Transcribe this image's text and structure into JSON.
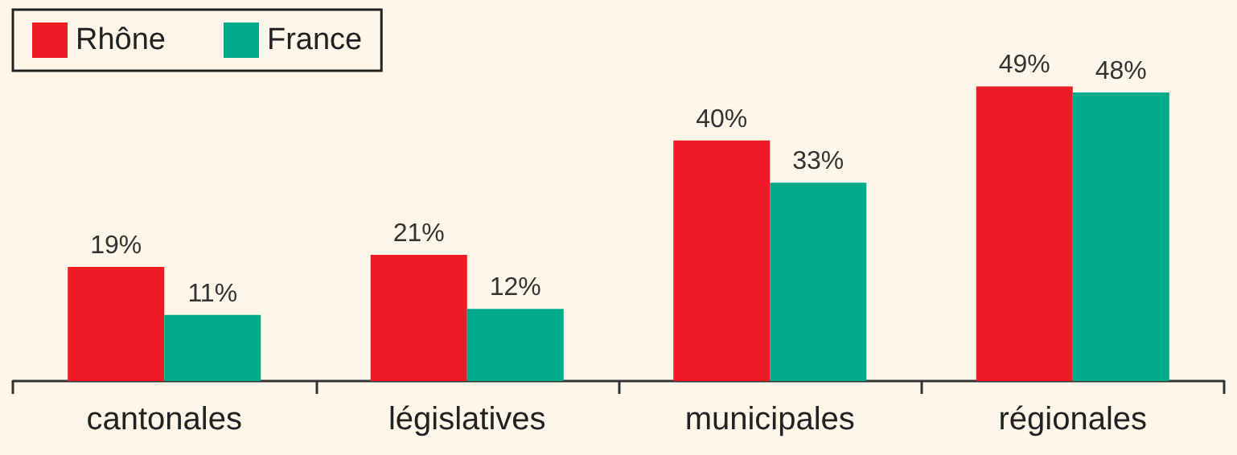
{
  "chart_data": {
    "type": "bar",
    "categories": [
      "cantonales",
      "législatives",
      "municipales",
      "régionales"
    ],
    "series": [
      {
        "name": "Rhône",
        "color": "#ed1c24",
        "values": [
          19,
          21,
          40,
          49
        ],
        "value_labels": [
          "19%",
          "21%",
          "40%",
          "49%"
        ]
      },
      {
        "name": "France",
        "color": "#00ab8a",
        "values": [
          11,
          12,
          33,
          48
        ],
        "value_labels": [
          "11%",
          "12%",
          "33%",
          "48%"
        ]
      }
    ],
    "legend": "top left"
  }
}
